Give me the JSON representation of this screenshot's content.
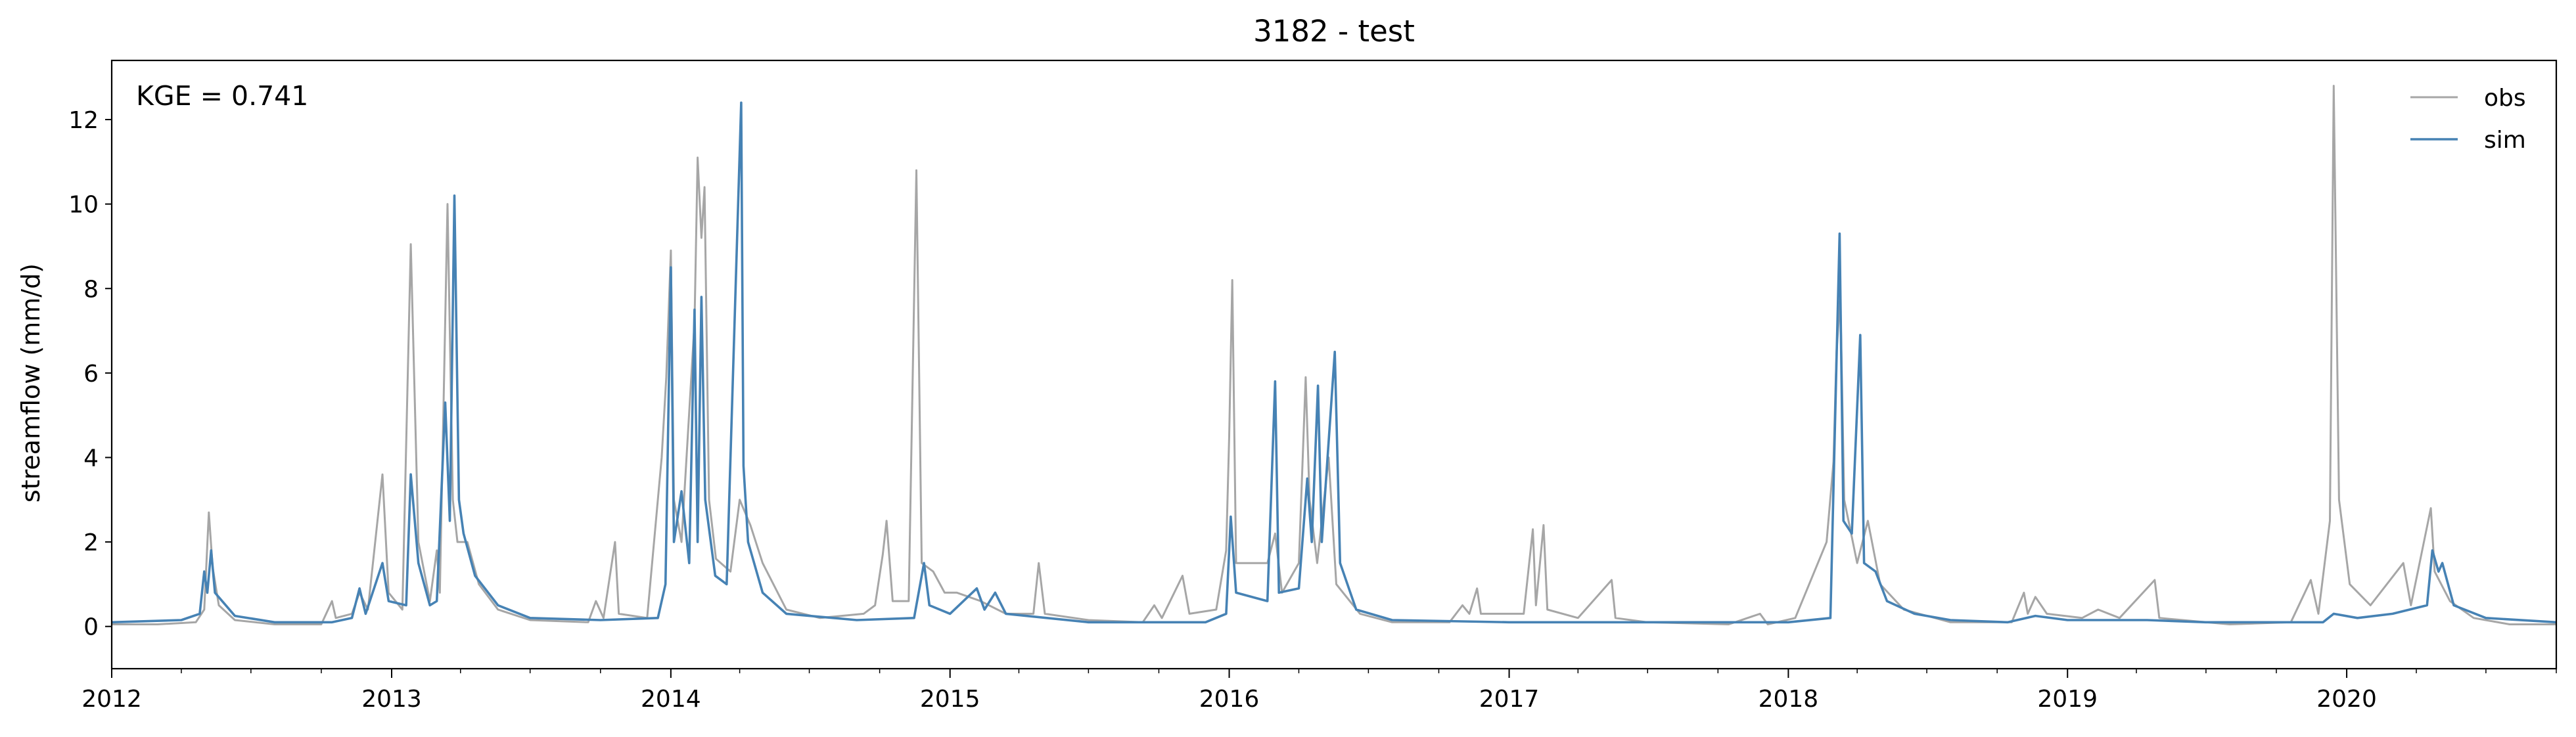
{
  "chart_data": {
    "type": "line",
    "title": "3182 - test",
    "xlabel": "",
    "ylabel": "streamflow (mm/d)",
    "annotation": "KGE = 0.741",
    "x_range": [
      "2012-01-01",
      "2020-10-01"
    ],
    "ylim": [
      -1,
      13.4
    ],
    "x_tick_labels": [
      "2012",
      "2013",
      "2014",
      "2015",
      "2016",
      "2017",
      "2018",
      "2019",
      "2020"
    ],
    "y_tick_labels": [
      "0",
      "2",
      "4",
      "6",
      "8",
      "10",
      "12"
    ],
    "y_ticks": [
      0,
      2,
      4,
      6,
      8,
      10,
      12
    ],
    "grid": false,
    "legend_placement": "top-right",
    "series": [
      {
        "name": "obs",
        "color": "#a6a6a6",
        "points": [
          [
            "2012-01-01",
            0.05
          ],
          [
            "2012-03-01",
            0.05
          ],
          [
            "2012-04-20",
            0.1
          ],
          [
            "2012-05-01",
            0.4
          ],
          [
            "2012-05-07",
            2.7
          ],
          [
            "2012-05-12",
            1.4
          ],
          [
            "2012-05-20",
            0.5
          ],
          [
            "2012-06-10",
            0.15
          ],
          [
            "2012-08-01",
            0.05
          ],
          [
            "2012-10-01",
            0.05
          ],
          [
            "2012-10-15",
            0.6
          ],
          [
            "2012-10-20",
            0.2
          ],
          [
            "2012-11-10",
            0.3
          ],
          [
            "2012-11-20",
            0.8
          ],
          [
            "2012-12-01",
            0.4
          ],
          [
            "2012-12-20",
            3.6
          ],
          [
            "2012-12-28",
            0.8
          ],
          [
            "2013-01-15",
            0.4
          ],
          [
            "2013-01-26",
            9.05
          ],
          [
            "2013-02-05",
            2.0
          ],
          [
            "2013-02-20",
            0.6
          ],
          [
            "2013-03-01",
            1.8
          ],
          [
            "2013-03-05",
            0.8
          ],
          [
            "2013-03-15",
            10.0
          ],
          [
            "2013-03-22",
            3.0
          ],
          [
            "2013-03-28",
            2.0
          ],
          [
            "2013-04-10",
            2.0
          ],
          [
            "2013-04-25",
            1.0
          ],
          [
            "2013-05-20",
            0.4
          ],
          [
            "2013-07-01",
            0.15
          ],
          [
            "2013-09-15",
            0.1
          ],
          [
            "2013-09-25",
            0.6
          ],
          [
            "2013-10-05",
            0.2
          ],
          [
            "2013-10-20",
            2.0
          ],
          [
            "2013-10-25",
            0.3
          ],
          [
            "2013-12-01",
            0.2
          ],
          [
            "2013-12-20",
            4.0
          ],
          [
            "2013-12-26",
            5.9
          ],
          [
            "2014-01-01",
            8.9
          ],
          [
            "2014-01-05",
            3.0
          ],
          [
            "2014-01-15",
            2.0
          ],
          [
            "2014-02-01",
            7.2
          ],
          [
            "2014-02-05",
            11.1
          ],
          [
            "2014-02-10",
            9.2
          ],
          [
            "2014-02-14",
            10.4
          ],
          [
            "2014-02-20",
            3.0
          ],
          [
            "2014-03-01",
            1.6
          ],
          [
            "2014-03-20",
            1.3
          ],
          [
            "2014-04-01",
            3.0
          ],
          [
            "2014-04-15",
            2.4
          ],
          [
            "2014-05-01",
            1.5
          ],
          [
            "2014-06-01",
            0.4
          ],
          [
            "2014-07-15",
            0.2
          ],
          [
            "2014-09-10",
            0.3
          ],
          [
            "2014-09-25",
            0.5
          ],
          [
            "2014-10-05",
            1.7
          ],
          [
            "2014-10-10",
            2.5
          ],
          [
            "2014-10-18",
            0.6
          ],
          [
            "2014-11-08",
            0.6
          ],
          [
            "2014-11-18",
            10.8
          ],
          [
            "2014-11-25",
            1.5
          ],
          [
            "2014-12-10",
            1.3
          ],
          [
            "2014-12-25",
            0.8
          ],
          [
            "2015-01-10",
            0.8
          ],
          [
            "2015-02-10",
            0.6
          ],
          [
            "2015-03-15",
            0.3
          ],
          [
            "2015-04-20",
            0.3
          ],
          [
            "2015-04-27",
            1.5
          ],
          [
            "2015-05-05",
            0.3
          ],
          [
            "2015-07-01",
            0.15
          ],
          [
            "2015-09-10",
            0.1
          ],
          [
            "2015-09-25",
            0.5
          ],
          [
            "2015-10-05",
            0.2
          ],
          [
            "2015-11-01",
            1.2
          ],
          [
            "2015-11-10",
            0.3
          ],
          [
            "2015-12-15",
            0.4
          ],
          [
            "2015-12-28",
            1.8
          ],
          [
            "2016-01-01",
            4.5
          ],
          [
            "2016-01-05",
            8.2
          ],
          [
            "2016-01-10",
            1.5
          ],
          [
            "2016-02-20",
            1.5
          ],
          [
            "2016-03-01",
            2.2
          ],
          [
            "2016-03-10",
            0.8
          ],
          [
            "2016-04-01",
            1.5
          ],
          [
            "2016-04-10",
            5.9
          ],
          [
            "2016-04-15",
            3.0
          ],
          [
            "2016-04-25",
            1.5
          ],
          [
            "2016-05-10",
            4.0
          ],
          [
            "2016-05-20",
            1.0
          ],
          [
            "2016-06-20",
            0.3
          ],
          [
            "2016-08-01",
            0.1
          ],
          [
            "2016-10-15",
            0.1
          ],
          [
            "2016-11-01",
            0.5
          ],
          [
            "2016-11-10",
            0.3
          ],
          [
            "2016-11-20",
            0.9
          ],
          [
            "2016-11-25",
            0.3
          ],
          [
            "2017-01-20",
            0.3
          ],
          [
            "2017-02-01",
            2.3
          ],
          [
            "2017-02-05",
            0.5
          ],
          [
            "2017-02-15",
            2.4
          ],
          [
            "2017-02-20",
            0.4
          ],
          [
            "2017-04-01",
            0.2
          ],
          [
            "2017-05-15",
            1.1
          ],
          [
            "2017-05-20",
            0.2
          ],
          [
            "2017-07-01",
            0.1
          ],
          [
            "2017-10-15",
            0.05
          ],
          [
            "2017-11-25",
            0.3
          ],
          [
            "2017-12-05",
            0.05
          ],
          [
            "2018-01-10",
            0.2
          ],
          [
            "2018-02-20",
            2.0
          ],
          [
            "2018-03-01",
            3.9
          ],
          [
            "2018-03-05",
            6.5
          ],
          [
            "2018-03-10",
            7.8
          ],
          [
            "2018-03-15",
            3.0
          ],
          [
            "2018-04-01",
            1.5
          ],
          [
            "2018-04-15",
            2.5
          ],
          [
            "2018-05-01",
            1.0
          ],
          [
            "2018-06-01",
            0.4
          ],
          [
            "2018-08-01",
            0.1
          ],
          [
            "2018-10-20",
            0.1
          ],
          [
            "2018-11-05",
            0.8
          ],
          [
            "2018-11-10",
            0.3
          ],
          [
            "2018-11-20",
            0.7
          ],
          [
            "2018-12-05",
            0.3
          ],
          [
            "2019-01-20",
            0.2
          ],
          [
            "2019-02-10",
            0.4
          ],
          [
            "2019-03-10",
            0.2
          ],
          [
            "2019-04-25",
            1.1
          ],
          [
            "2019-05-01",
            0.2
          ],
          [
            "2019-08-01",
            0.05
          ],
          [
            "2019-10-20",
            0.1
          ],
          [
            "2019-11-15",
            1.1
          ],
          [
            "2019-11-25",
            0.3
          ],
          [
            "2019-12-10",
            2.5
          ],
          [
            "2019-12-15",
            12.8
          ],
          [
            "2019-12-22",
            3.0
          ],
          [
            "2020-01-05",
            1.0
          ],
          [
            "2020-02-01",
            0.5
          ],
          [
            "2020-03-15",
            1.5
          ],
          [
            "2020-03-25",
            0.5
          ],
          [
            "2020-04-20",
            2.8
          ],
          [
            "2020-04-25",
            1.3
          ],
          [
            "2020-05-15",
            0.6
          ],
          [
            "2020-06-15",
            0.2
          ],
          [
            "2020-08-01",
            0.05
          ],
          [
            "2020-10-01",
            0.05
          ]
        ]
      },
      {
        "name": "sim",
        "color": "#4682b4",
        "points": [
          [
            "2012-01-01",
            0.1
          ],
          [
            "2012-04-01",
            0.15
          ],
          [
            "2012-04-25",
            0.3
          ],
          [
            "2012-05-01",
            1.3
          ],
          [
            "2012-05-05",
            0.8
          ],
          [
            "2012-05-10",
            1.8
          ],
          [
            "2012-05-15",
            0.8
          ],
          [
            "2012-06-10",
            0.25
          ],
          [
            "2012-08-01",
            0.1
          ],
          [
            "2012-10-15",
            0.1
          ],
          [
            "2012-11-10",
            0.2
          ],
          [
            "2012-11-20",
            0.9
          ],
          [
            "2012-11-28",
            0.3
          ],
          [
            "2012-12-20",
            1.5
          ],
          [
            "2012-12-28",
            0.6
          ],
          [
            "2013-01-20",
            0.5
          ],
          [
            "2013-01-26",
            3.6
          ],
          [
            "2013-02-05",
            1.5
          ],
          [
            "2013-02-20",
            0.5
          ],
          [
            "2013-03-01",
            0.6
          ],
          [
            "2013-03-12",
            5.3
          ],
          [
            "2013-03-18",
            2.5
          ],
          [
            "2013-03-24",
            10.2
          ],
          [
            "2013-03-30",
            3.0
          ],
          [
            "2013-04-05",
            2.2
          ],
          [
            "2013-04-20",
            1.2
          ],
          [
            "2013-05-20",
            0.5
          ],
          [
            "2013-07-01",
            0.2
          ],
          [
            "2013-10-01",
            0.15
          ],
          [
            "2013-12-15",
            0.2
          ],
          [
            "2013-12-25",
            1.0
          ],
          [
            "2014-01-01",
            8.5
          ],
          [
            "2014-01-05",
            2.0
          ],
          [
            "2014-01-15",
            3.2
          ],
          [
            "2014-01-25",
            1.5
          ],
          [
            "2014-02-01",
            7.5
          ],
          [
            "2014-02-05",
            2.0
          ],
          [
            "2014-02-10",
            7.8
          ],
          [
            "2014-02-15",
            3.0
          ],
          [
            "2014-02-28",
            1.2
          ],
          [
            "2014-03-15",
            1.0
          ],
          [
            "2014-04-03",
            12.4
          ],
          [
            "2014-04-06",
            3.8
          ],
          [
            "2014-04-12",
            2.0
          ],
          [
            "2014-05-01",
            0.8
          ],
          [
            "2014-06-01",
            0.3
          ],
          [
            "2014-09-01",
            0.15
          ],
          [
            "2014-11-15",
            0.2
          ],
          [
            "2014-11-28",
            1.5
          ],
          [
            "2014-12-05",
            0.5
          ],
          [
            "2015-01-01",
            0.3
          ],
          [
            "2015-02-05",
            0.9
          ],
          [
            "2015-02-15",
            0.4
          ],
          [
            "2015-03-01",
            0.8
          ],
          [
            "2015-03-15",
            0.3
          ],
          [
            "2015-07-01",
            0.1
          ],
          [
            "2015-12-01",
            0.1
          ],
          [
            "2015-12-28",
            0.3
          ],
          [
            "2016-01-03",
            2.6
          ],
          [
            "2016-01-10",
            0.8
          ],
          [
            "2016-02-20",
            0.6
          ],
          [
            "2016-03-01",
            5.8
          ],
          [
            "2016-03-06",
            0.8
          ],
          [
            "2016-04-01",
            0.9
          ],
          [
            "2016-04-12",
            3.5
          ],
          [
            "2016-04-18",
            2.0
          ],
          [
            "2016-04-26",
            5.7
          ],
          [
            "2016-05-01",
            2.0
          ],
          [
            "2016-05-18",
            6.5
          ],
          [
            "2016-05-25",
            1.5
          ],
          [
            "2016-06-15",
            0.4
          ],
          [
            "2016-08-01",
            0.15
          ],
          [
            "2017-01-01",
            0.1
          ],
          [
            "2018-01-01",
            0.1
          ],
          [
            "2018-02-25",
            0.2
          ],
          [
            "2018-03-05",
            6.3
          ],
          [
            "2018-03-09",
            9.3
          ],
          [
            "2018-03-14",
            2.5
          ],
          [
            "2018-03-25",
            2.2
          ],
          [
            "2018-04-05",
            6.9
          ],
          [
            "2018-04-10",
            1.5
          ],
          [
            "2018-04-25",
            1.3
          ],
          [
            "2018-05-10",
            0.6
          ],
          [
            "2018-06-15",
            0.3
          ],
          [
            "2018-08-01",
            0.15
          ],
          [
            "2018-10-15",
            0.1
          ],
          [
            "2018-11-20",
            0.25
          ],
          [
            "2019-01-01",
            0.15
          ],
          [
            "2019-04-15",
            0.15
          ],
          [
            "2019-07-01",
            0.1
          ],
          [
            "2019-12-01",
            0.1
          ],
          [
            "2019-12-15",
            0.3
          ],
          [
            "2020-01-15",
            0.2
          ],
          [
            "2020-03-01",
            0.3
          ],
          [
            "2020-04-15",
            0.5
          ],
          [
            "2020-04-22",
            1.8
          ],
          [
            "2020-04-30",
            1.3
          ],
          [
            "2020-05-05",
            1.5
          ],
          [
            "2020-05-20",
            0.5
          ],
          [
            "2020-07-01",
            0.2
          ],
          [
            "2020-10-01",
            0.1
          ]
        ]
      }
    ]
  }
}
